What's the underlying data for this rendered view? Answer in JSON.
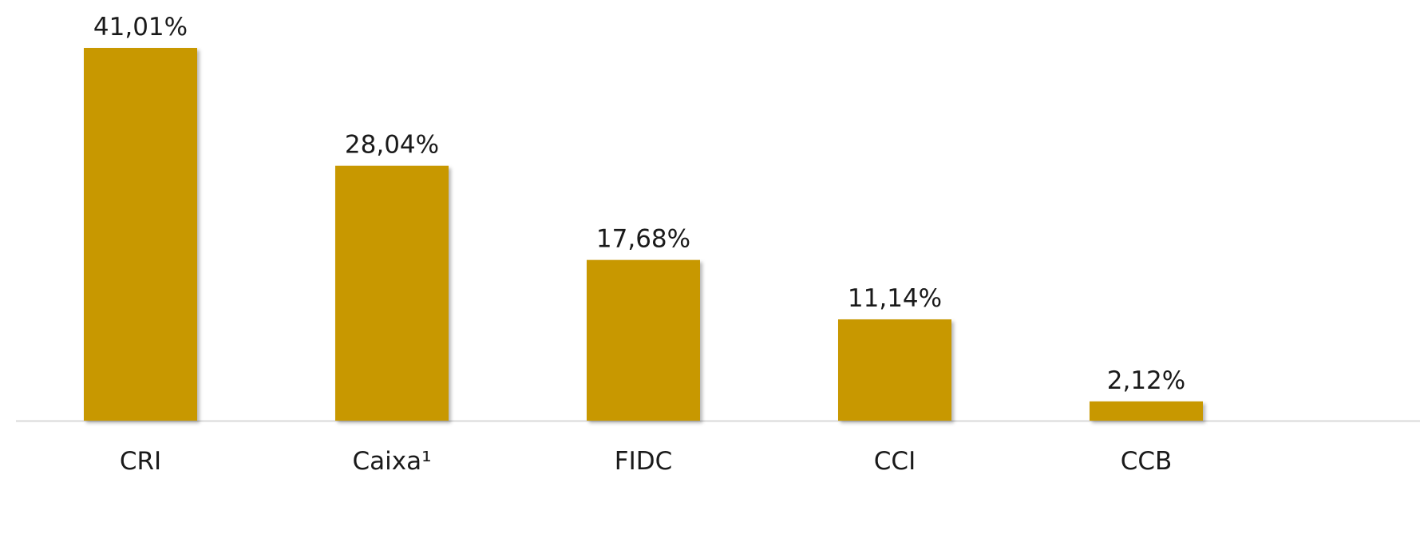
{
  "chart_data": {
    "type": "bar",
    "title": "",
    "xlabel": "",
    "ylabel": "",
    "categories": [
      "CRI",
      "Caixa¹",
      "FIDC",
      "CCI",
      "CCB"
    ],
    "values": [
      41.01,
      28.04,
      17.68,
      11.14,
      2.12
    ],
    "data_labels": [
      "41,01%",
      "28,04%",
      "17,68%",
      "11,14%",
      "2,12%"
    ],
    "ylim": [
      0,
      41.01
    ],
    "grid": false,
    "legend": "none",
    "bar_color": "#C89800",
    "axis_color": "#D9D9D9"
  }
}
